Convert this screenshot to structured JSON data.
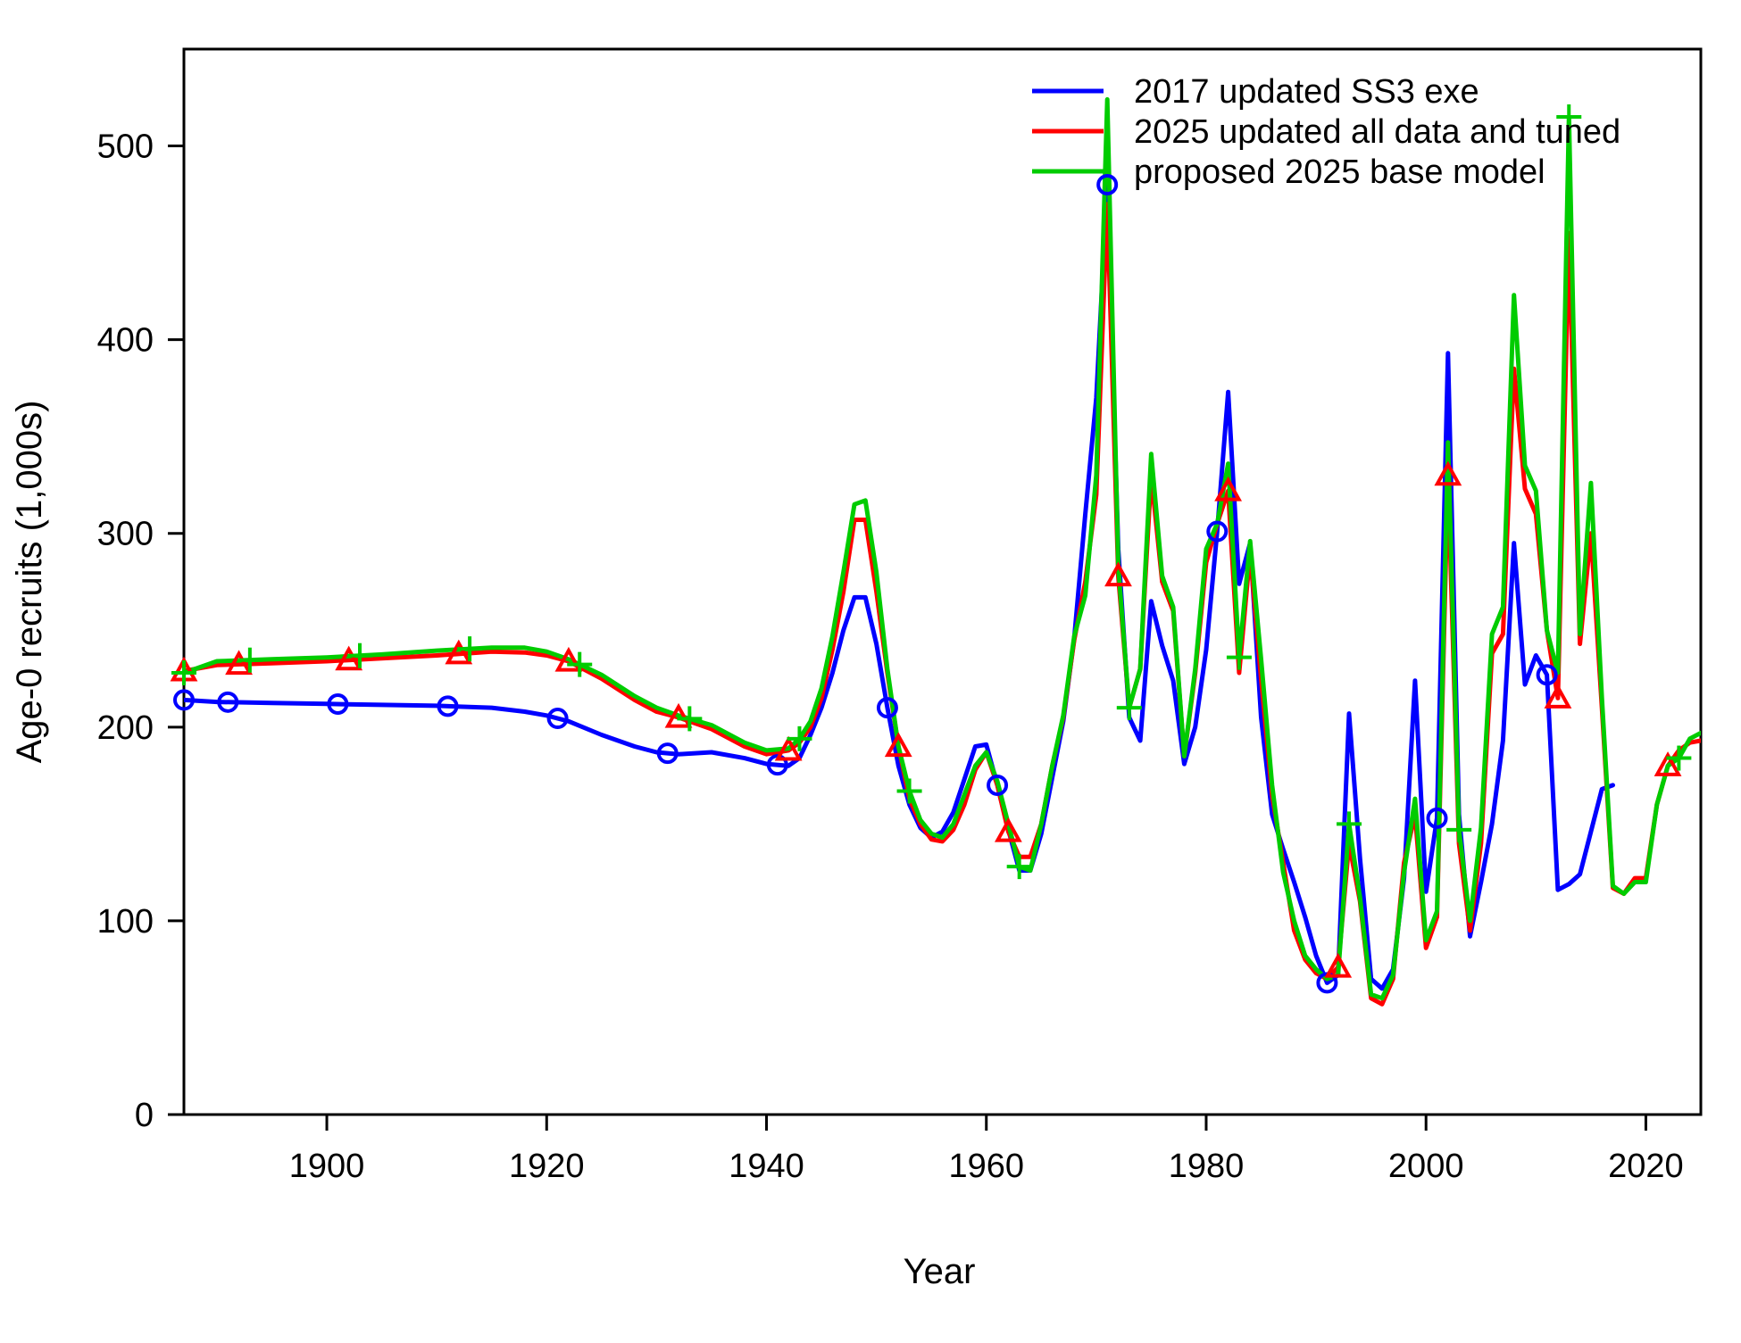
{
  "chart_data": {
    "type": "line",
    "title": "",
    "xlabel": "Year",
    "ylabel": "Age-0 recruits (1,000s)",
    "xlim": [
      1887,
      2025
    ],
    "ylim": [
      0,
      550
    ],
    "x_ticks": [
      1900,
      1920,
      1940,
      1960,
      1980,
      2000,
      2020
    ],
    "y_ticks": [
      0,
      100,
      200,
      300,
      400,
      500
    ],
    "grid": false,
    "legend_position": "top-right",
    "series": [
      {
        "name": "2017 updated SS3 exe",
        "color": "#0000ff",
        "marker": "circle",
        "marker_x": [
          1887,
          1891,
          1901,
          1911,
          1921,
          1931,
          1941,
          1951,
          1961,
          1971,
          1981,
          1991,
          2001,
          2011
        ],
        "x": [
          1887,
          1890,
          1895,
          1900,
          1905,
          1910,
          1915,
          1918,
          1920,
          1922,
          1925,
          1928,
          1930,
          1932,
          1935,
          1938,
          1940,
          1942,
          1943,
          1944,
          1945,
          1946,
          1947,
          1948,
          1949,
          1950,
          1951,
          1952,
          1953,
          1954,
          1955,
          1956,
          1957,
          1958,
          1959,
          1960,
          1961,
          1962,
          1963,
          1964,
          1965,
          1966,
          1967,
          1968,
          1969,
          1970,
          1971,
          1972,
          1973,
          1974,
          1975,
          1976,
          1977,
          1978,
          1979,
          1980,
          1981,
          1982,
          1983,
          1984,
          1985,
          1986,
          1987,
          1988,
          1989,
          1990,
          1991,
          1992,
          1993,
          1994,
          1995,
          1996,
          1997,
          1998,
          1999,
          2000,
          2001,
          2002,
          2003,
          2004,
          2005,
          2006,
          2007,
          2008,
          2009,
          2010,
          2011,
          2012,
          2013,
          2014,
          2015,
          2016,
          2017
        ],
        "y": [
          214,
          213,
          212.5,
          212,
          211.5,
          211,
          210,
          208,
          206,
          203,
          196,
          190,
          187,
          186,
          187,
          184,
          181,
          180,
          184,
          196,
          210,
          228,
          250,
          267,
          267,
          243,
          210,
          180,
          160,
          148,
          143,
          146,
          156,
          173,
          190,
          191,
          170,
          147,
          126,
          126,
          145,
          174,
          203,
          246,
          310,
          370,
          480,
          292,
          205,
          193,
          265,
          242,
          224,
          181,
          200,
          240,
          301,
          373,
          274,
          295,
          205,
          155,
          137,
          120,
          102,
          82,
          68,
          72,
          207,
          132,
          70,
          65,
          75,
          122,
          224,
          115,
          153,
          393,
          155,
          92,
          120,
          150,
          193,
          295,
          222,
          237,
          227,
          116,
          119,
          124,
          146,
          168,
          170
        ]
      },
      {
        "name": "2025 updated all data and tuned",
        "color": "#ff0000",
        "marker": "triangle",
        "marker_x": [
          1887,
          1892,
          1902,
          1912,
          1922,
          1932,
          1942,
          1952,
          1962,
          1972,
          1982,
          1992,
          2002,
          2012,
          2022
        ],
        "x": [
          1887,
          1890,
          1895,
          1900,
          1905,
          1910,
          1915,
          1918,
          1920,
          1922,
          1925,
          1928,
          1930,
          1932,
          1935,
          1938,
          1940,
          1942,
          1943,
          1944,
          1945,
          1946,
          1947,
          1948,
          1949,
          1950,
          1951,
          1952,
          1953,
          1954,
          1955,
          1956,
          1957,
          1958,
          1959,
          1960,
          1961,
          1962,
          1963,
          1964,
          1965,
          1966,
          1967,
          1968,
          1969,
          1970,
          1971,
          1972,
          1973,
          1974,
          1975,
          1976,
          1977,
          1978,
          1979,
          1980,
          1981,
          1982,
          1983,
          1984,
          1985,
          1986,
          1987,
          1988,
          1989,
          1990,
          1991,
          1992,
          1993,
          1994,
          1995,
          1996,
          1997,
          1998,
          1999,
          2000,
          2001,
          2002,
          2003,
          2004,
          2005,
          2006,
          2007,
          2008,
          2009,
          2010,
          2011,
          2012,
          2013,
          2014,
          2015,
          2016,
          2017,
          2018,
          2019,
          2020,
          2021,
          2022,
          2023,
          2024,
          2025
        ],
        "y": [
          229,
          232,
          233,
          234,
          235.5,
          237,
          239,
          238.5,
          237,
          234,
          225,
          214,
          208,
          205,
          199,
          190,
          186,
          188,
          192,
          200,
          215,
          240,
          270,
          307,
          307,
          270,
          228,
          190,
          163,
          150,
          142,
          141,
          147,
          160,
          178,
          187,
          170,
          146,
          133,
          133,
          150,
          180,
          205,
          245,
          275,
          320,
          470,
          278,
          210,
          230,
          330,
          275,
          260,
          185,
          228,
          285,
          305,
          322,
          228,
          290,
          225,
          165,
          130,
          95,
          80,
          73,
          70,
          76,
          140,
          110,
          60,
          57,
          70,
          130,
          155,
          86,
          102,
          330,
          140,
          95,
          140,
          238,
          248,
          385,
          323,
          310,
          250,
          215,
          455,
          243,
          300,
          210,
          117,
          114,
          122,
          122,
          160,
          180,
          188,
          192,
          193
        ]
      },
      {
        "name": "proposed 2025 base model",
        "color": "#00cc00",
        "marker": "plus",
        "marker_x": [
          1887,
          1893,
          1903,
          1913,
          1923,
          1933,
          1943,
          1953,
          1963,
          1973,
          1983,
          1993,
          2003,
          2013,
          2023
        ],
        "x": [
          1887,
          1890,
          1895,
          1900,
          1905,
          1910,
          1915,
          1918,
          1920,
          1922,
          1925,
          1928,
          1930,
          1932,
          1935,
          1938,
          1940,
          1942,
          1943,
          1944,
          1945,
          1946,
          1947,
          1948,
          1949,
          1950,
          1951,
          1952,
          1953,
          1954,
          1955,
          1956,
          1957,
          1958,
          1959,
          1960,
          1961,
          1962,
          1963,
          1964,
          1965,
          1966,
          1967,
          1968,
          1969,
          1970,
          1971,
          1972,
          1973,
          1974,
          1975,
          1976,
          1977,
          1978,
          1979,
          1980,
          1981,
          1982,
          1983,
          1984,
          1985,
          1986,
          1987,
          1988,
          1989,
          1990,
          1991,
          1992,
          1993,
          1994,
          1995,
          1996,
          1997,
          1998,
          1999,
          2000,
          2001,
          2002,
          2003,
          2004,
          2005,
          2006,
          2007,
          2008,
          2009,
          2010,
          2011,
          2012,
          2013,
          2014,
          2015,
          2016,
          2017,
          2018,
          2019,
          2020,
          2021,
          2022,
          2023,
          2024,
          2025
        ],
        "y": [
          228,
          234,
          235,
          236,
          237.5,
          239.5,
          241,
          241,
          239,
          235,
          227,
          216,
          210,
          206,
          201,
          192,
          188,
          189,
          194,
          203,
          220,
          247,
          280,
          315,
          317,
          280,
          230,
          190,
          167,
          152,
          145,
          143,
          150,
          165,
          180,
          187,
          172,
          150,
          128,
          126,
          150,
          180,
          206,
          247,
          268,
          330,
          524,
          283,
          210,
          230,
          341,
          278,
          262,
          185,
          230,
          292,
          305,
          336,
          236,
          296,
          235,
          170,
          125,
          100,
          82,
          75,
          70,
          72,
          150,
          112,
          62,
          60,
          72,
          125,
          163,
          90,
          105,
          347,
          147,
          100,
          148,
          248,
          262,
          423,
          335,
          322,
          250,
          228,
          515,
          248,
          326,
          215,
          118,
          114,
          120,
          120,
          160,
          180,
          184,
          194,
          197
        ]
      }
    ]
  }
}
